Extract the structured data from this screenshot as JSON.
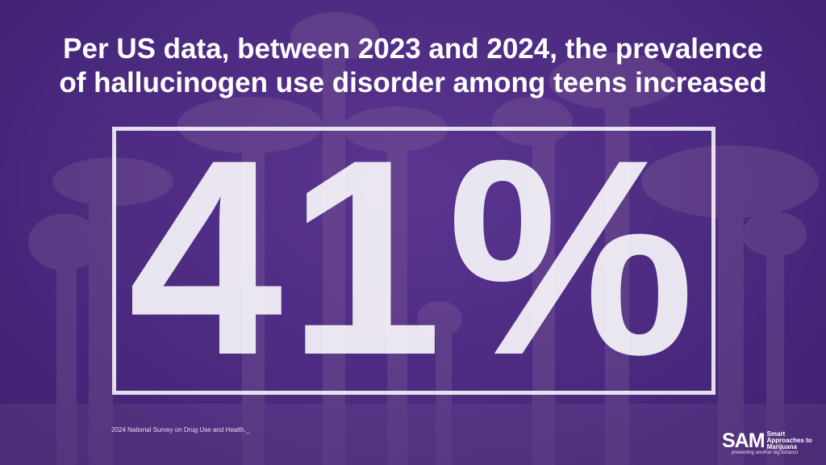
{
  "headline": {
    "line1": "Per US data, between 2023 and 2024, the prevalence",
    "line2": "of hallucinogen use disorder among teens increased"
  },
  "statistic": "41%",
  "source": "2024 National Survey on Drug Use and Health._",
  "logo": {
    "abbr": "SAM",
    "name_line1": "Smart",
    "name_line2": "Approaches to",
    "name_line3": "Marijuana",
    "tagline": "preventing another big tobacco"
  },
  "colors": {
    "background": "#4b2a80",
    "text": "#ffffff"
  }
}
